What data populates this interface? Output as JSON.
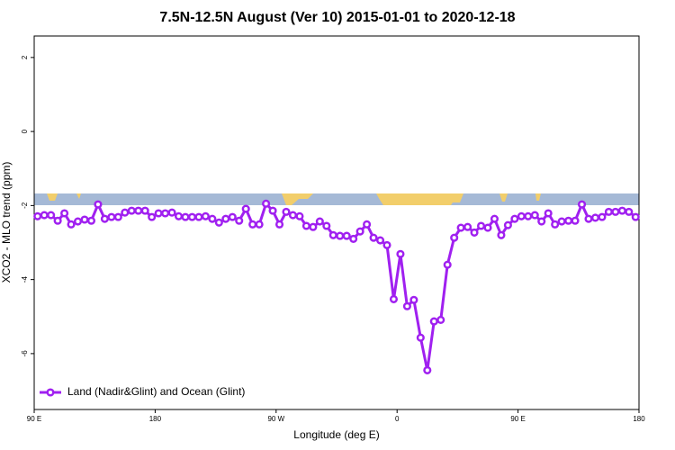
{
  "chart_data": {
    "type": "line",
    "title": "7.5N-12.5N August (Ver 10)   2015-01-01 to 2020-12-18",
    "x_label": "Longitude (deg E)",
    "y_label": "XCO2 - MLO trend (ppm)",
    "x": [
      92.5,
      97.5,
      102.5,
      107.5,
      112.5,
      117.5,
      122.5,
      127.5,
      132.5,
      137.5,
      142.5,
      147.5,
      152.5,
      157.5,
      162.5,
      167.5,
      172.5,
      177.5,
      182.5,
      187.5,
      192.5,
      197.5,
      202.5,
      207.5,
      212.5,
      217.5,
      222.5,
      227.5,
      232.5,
      237.5,
      242.5,
      247.5,
      252.5,
      257.5,
      262.5,
      267.5,
      272.5,
      277.5,
      282.5,
      287.5,
      292.5,
      297.5,
      302.5,
      307.5,
      312.5,
      317.5,
      322.5,
      327.5,
      332.5,
      337.5,
      342.5,
      347.5,
      352.5,
      357.5,
      362.5,
      367.5,
      372.5,
      377.5,
      382.5,
      387.5,
      392.5,
      397.5,
      402.5,
      407.5,
      412.5,
      417.5,
      422.5,
      427.5,
      432.5,
      437.5,
      442.5,
      447.5,
      452.5,
      457.5,
      462.5,
      467.5,
      472.5,
      477.5,
      482.5,
      487.5,
      492.5,
      497.5,
      502.5,
      507.5,
      512.5,
      517.5,
      522.5,
      527.5,
      532.5,
      537.5
    ],
    "series": [
      {
        "name": "Land (Nadir&Glint) and Ocean (Glint)",
        "color": "#a020f0",
        "values": [
          -2.29,
          -2.26,
          -2.26,
          -2.41,
          -2.21,
          -2.51,
          -2.43,
          -2.38,
          -2.41,
          -1.97,
          -2.36,
          -2.31,
          -2.31,
          -2.19,
          -2.14,
          -2.14,
          -2.14,
          -2.31,
          -2.21,
          -2.21,
          -2.19,
          -2.29,
          -2.31,
          -2.31,
          -2.31,
          -2.29,
          -2.36,
          -2.46,
          -2.36,
          -2.31,
          -2.41,
          -2.09,
          -2.51,
          -2.51,
          -1.95,
          -2.14,
          -2.51,
          -2.17,
          -2.26,
          -2.29,
          -2.55,
          -2.58,
          -2.43,
          -2.55,
          -2.8,
          -2.82,
          -2.82,
          -2.9,
          -2.7,
          -2.51,
          -2.87,
          -2.94,
          -3.07,
          -4.53,
          -3.31,
          -4.72,
          -4.55,
          -5.57,
          -6.45,
          -5.13,
          -5.09,
          -3.6,
          -2.87,
          -2.6,
          -2.58,
          -2.73,
          -2.55,
          -2.6,
          -2.36,
          -2.8,
          -2.53,
          -2.36,
          -2.29,
          -2.29,
          -2.26,
          -2.43,
          -2.21,
          -2.51,
          -2.43,
          -2.41,
          -2.41,
          -1.97,
          -2.36,
          -2.33,
          -2.31,
          -2.17,
          -2.17,
          -2.14,
          -2.17,
          -2.31
        ]
      }
    ],
    "xlim": [
      90,
      540
    ],
    "xticks": [
      {
        "value": 90,
        "label": "90 E"
      },
      180,
      {
        "value": 270,
        "label": "90 W"
      },
      {
        "value": 360,
        "label": "0"
      },
      {
        "value": 450,
        "label": "90 E"
      },
      {
        "value": 540,
        "label": "180"
      }
    ],
    "ylim": [
      -7.51,
      2.58
    ],
    "yticks": [
      2,
      0,
      -2,
      -4,
      -6
    ],
    "legend": "bottom-left"
  }
}
